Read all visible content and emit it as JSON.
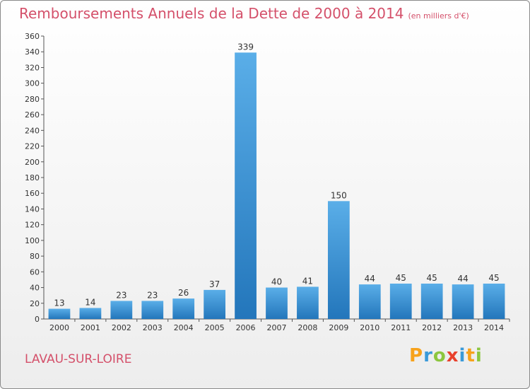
{
  "title": "Remboursements Annuels de la Dette de 2000 à 2014",
  "unit": "(en milliers d'€)",
  "commune": "LAVAU-SUR-LOIRE",
  "logo": {
    "letters": [
      "P",
      "r",
      "o",
      "x",
      "i",
      "t",
      "i"
    ],
    "colors": [
      "#f7a21b",
      "#3a9ad9",
      "#8cc63f",
      "#e8412c",
      "#3a9ad9",
      "#f7a21b",
      "#8cc63f"
    ]
  },
  "colors": {
    "bar_top": "#5aaee8",
    "bar_bottom": "#2376bb",
    "title": "#d4506a"
  },
  "chart_data": {
    "type": "bar",
    "title": "Remboursements Annuels de la Dette de 2000 à 2014",
    "categories": [
      "2000",
      "2001",
      "2002",
      "2003",
      "2004",
      "2005",
      "2006",
      "2007",
      "2008",
      "2009",
      "2010",
      "2011",
      "2012",
      "2013",
      "2014"
    ],
    "values": [
      13,
      14,
      23,
      23,
      26,
      37,
      339,
      40,
      41,
      150,
      44,
      45,
      45,
      44,
      45
    ],
    "ylim": [
      0,
      360
    ],
    "yticks": [
      0,
      20,
      40,
      60,
      80,
      100,
      120,
      140,
      160,
      180,
      200,
      220,
      240,
      260,
      280,
      300,
      320,
      340,
      360
    ],
    "grid": false,
    "xlabel": "",
    "ylabel": ""
  }
}
